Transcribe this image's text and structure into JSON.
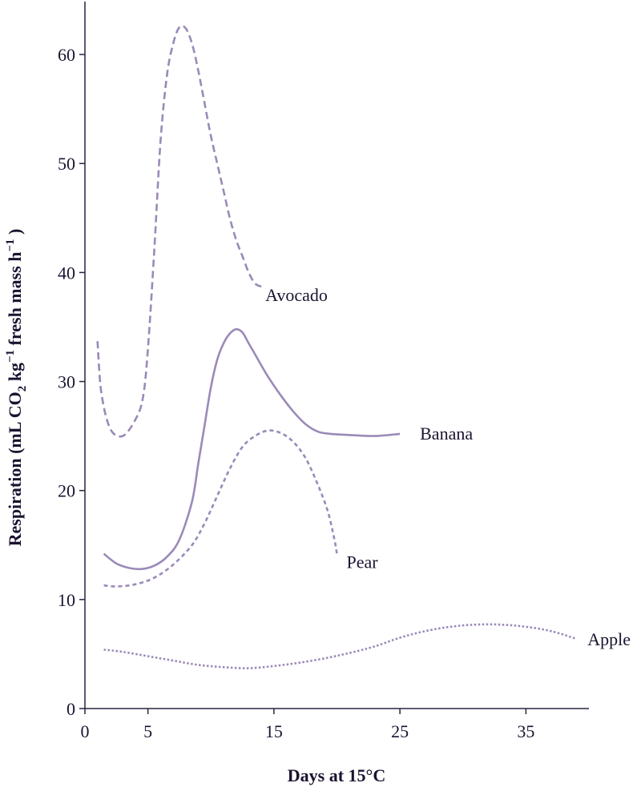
{
  "chart_data": {
    "type": "line",
    "xlabel": "Days at 15°C",
    "ylabel_main": "Respiration (mL CO",
    "ylabel_sub2": "2",
    "ylabel_mid": " kg",
    "ylabel_sup1": "−1",
    "ylabel_mid2": " fresh mass h",
    "ylabel_sup2": "−1",
    "ylabel_end": " )",
    "xlim": [
      0,
      40
    ],
    "ylim": [
      0,
      65
    ],
    "x_ticks": [
      0,
      5,
      15,
      25,
      35
    ],
    "y_ticks": [
      0,
      10,
      20,
      30,
      40,
      50,
      60
    ],
    "grid": false,
    "legend": "none",
    "series": [
      {
        "name": "Avocado",
        "color": "#9a8ab8",
        "dash": "long-dash",
        "x": [
          1.0,
          1.3,
          2.0,
          3.0,
          4.0,
          4.6,
          5.0,
          5.5,
          6.0,
          6.5,
          7.0,
          7.5,
          8.0,
          8.5,
          9.0,
          9.5,
          10.0,
          10.5,
          11.0,
          11.5,
          12.0,
          12.5,
          13.0,
          13.5,
          14.0
        ],
        "y": [
          33.7,
          29.0,
          25.7,
          25.0,
          26.5,
          28.5,
          33.0,
          42.0,
          52.0,
          58.0,
          61.0,
          62.5,
          62.4,
          61.0,
          58.5,
          55.5,
          52.5,
          50.0,
          47.5,
          45.0,
          43.0,
          41.5,
          40.0,
          39.0,
          38.7
        ]
      },
      {
        "name": "Banana",
        "color": "#9a8ab8",
        "dash": "solid",
        "x": [
          1.5,
          2.5,
          3.5,
          4.5,
          5.5,
          6.5,
          7.5,
          8.5,
          9.0,
          9.5,
          10.0,
          10.5,
          11.0,
          11.5,
          12.0,
          12.5,
          13.0,
          13.5,
          14.5,
          15.5,
          16.5,
          17.5,
          18.5,
          19.5,
          21.0,
          23.0,
          25.0
        ],
        "y": [
          14.2,
          13.3,
          12.9,
          12.8,
          13.1,
          13.9,
          15.5,
          19.0,
          22.5,
          26.0,
          29.5,
          32.0,
          33.5,
          34.4,
          34.8,
          34.5,
          33.5,
          32.5,
          30.5,
          28.8,
          27.3,
          26.1,
          25.4,
          25.2,
          25.1,
          25.0,
          25.2
        ]
      },
      {
        "name": "Pear",
        "color": "#9a8ab8",
        "dash": "short-dash",
        "x": [
          1.5,
          2.5,
          4.0,
          5.5,
          7.0,
          8.5,
          9.5,
          10.5,
          11.5,
          12.5,
          13.5,
          14.5,
          15.5,
          16.5,
          17.5,
          18.5,
          19.3,
          19.8,
          20.0
        ],
        "y": [
          11.3,
          11.2,
          11.4,
          12.0,
          13.2,
          15.0,
          17.0,
          19.5,
          22.0,
          24.0,
          25.0,
          25.5,
          25.3,
          24.5,
          23.0,
          20.5,
          18.0,
          15.5,
          14.2
        ]
      },
      {
        "name": "Apple",
        "color": "#9a8ab8",
        "dash": "dotted",
        "x": [
          1.5,
          3.0,
          5.0,
          7.0,
          9.0,
          11.0,
          13.0,
          15.0,
          17.0,
          19.0,
          21.0,
          23.0,
          25.0,
          27.0,
          29.0,
          31.0,
          33.0,
          35.0,
          37.0,
          39.0
        ],
        "y": [
          5.4,
          5.2,
          4.8,
          4.4,
          4.0,
          3.8,
          3.7,
          3.9,
          4.2,
          4.6,
          5.1,
          5.7,
          6.5,
          7.1,
          7.5,
          7.7,
          7.7,
          7.5,
          7.1,
          6.4
        ]
      }
    ]
  }
}
